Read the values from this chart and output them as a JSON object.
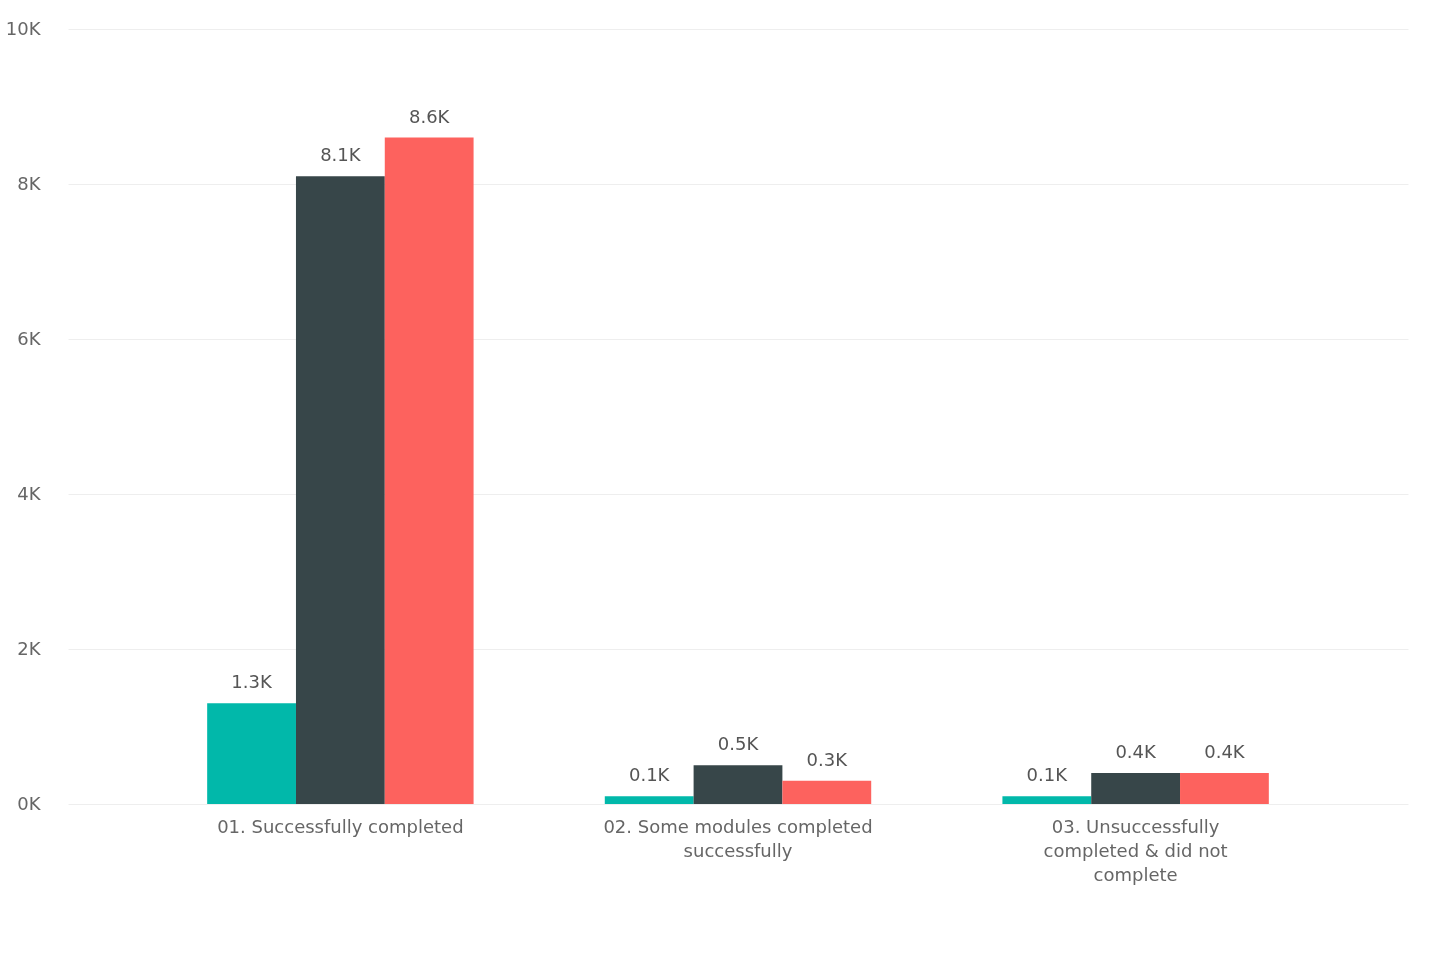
{
  "chart_data": {
    "type": "bar",
    "categories": [
      "01. Successfully completed",
      "02. Some modules completed successfully",
      "03. Unsuccessfully completed & did not complete"
    ],
    "series": [
      {
        "color": "#01b8aa",
        "values": [
          1300,
          100,
          100
        ],
        "value_labels": [
          "1.3K",
          "0.1K",
          "0.1K"
        ]
      },
      {
        "color": "#374649",
        "values": [
          8100,
          500,
          400
        ],
        "value_labels": [
          "8.1K",
          "0.5K",
          "0.4K"
        ]
      },
      {
        "color": "#fd625e",
        "values": [
          8600,
          300,
          400
        ],
        "value_labels": [
          "8.6K",
          "0.3K",
          "0.4K"
        ]
      }
    ],
    "ylim": [
      0,
      10000
    ],
    "yticks": [
      {
        "value": 0,
        "label": "0K"
      },
      {
        "value": 2000,
        "label": "2K"
      },
      {
        "value": 4000,
        "label": "4K"
      },
      {
        "value": 6000,
        "label": "6K"
      },
      {
        "value": 8000,
        "label": "8K"
      },
      {
        "value": 10000,
        "label": "10K"
      }
    ],
    "grid": "y",
    "legend": false
  }
}
